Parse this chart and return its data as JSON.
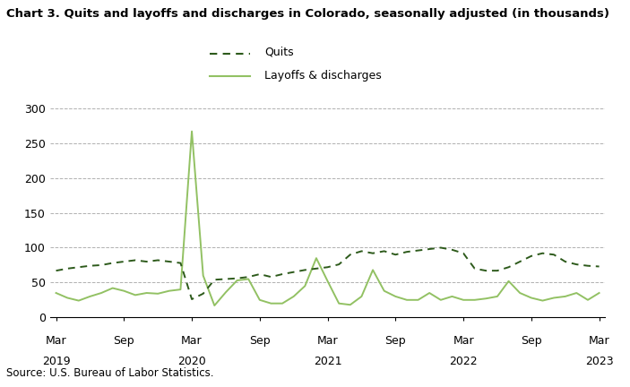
{
  "title": "Chart 3. Quits and layoffs and discharges in Colorado, seasonally adjusted (in thousands)",
  "source": "Source: U.S. Bureau of Labor Statistics.",
  "quits_label": "Quits",
  "layoffs_label": "Layoffs & discharges",
  "quits_color": "#2d5a1b",
  "layoffs_color": "#92c163",
  "background_color": "#ffffff",
  "ylim": [
    0,
    300
  ],
  "yticks": [
    0,
    50,
    100,
    150,
    200,
    250,
    300
  ],
  "grid_color": "#b0b0b0",
  "x_tick_positions": [
    0,
    6,
    12,
    18,
    24,
    30,
    36,
    42,
    48
  ],
  "x_tick_labels_line1": [
    "Mar",
    "Sep",
    "Mar",
    "Sep",
    "Mar",
    "Sep",
    "Mar",
    "Sep",
    "Mar"
  ],
  "x_tick_labels_line2": [
    "2019",
    "",
    "2020",
    "",
    "2021",
    "",
    "2022",
    "",
    "2023"
  ],
  "quits": [
    67,
    70,
    72,
    74,
    75,
    78,
    80,
    82,
    80,
    82,
    80,
    78,
    26,
    34,
    54,
    55,
    56,
    58,
    62,
    58,
    62,
    65,
    68,
    70,
    72,
    76,
    90,
    95,
    92,
    95,
    90,
    94,
    96,
    98,
    100,
    97,
    92,
    70,
    67,
    67,
    72,
    80,
    88,
    92,
    90,
    80,
    76,
    74,
    73
  ],
  "layoffs": [
    35,
    28,
    24,
    30,
    35,
    42,
    38,
    32,
    35,
    34,
    38,
    40,
    267,
    60,
    17,
    36,
    53,
    55,
    25,
    20,
    20,
    30,
    45,
    85,
    52,
    20,
    18,
    30,
    68,
    38,
    30,
    25,
    25,
    35,
    25,
    30,
    25,
    25,
    27,
    30,
    52,
    35,
    28,
    24,
    28,
    30,
    35,
    25,
    35
  ],
  "n_points": 49
}
